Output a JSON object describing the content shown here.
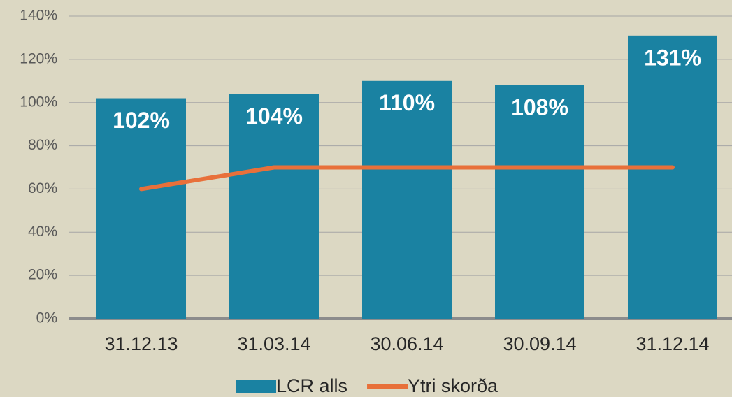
{
  "chart_data": {
    "type": "bar",
    "categories": [
      "31.12.13",
      "31.03.14",
      "30.06.14",
      "30.09.14",
      "31.12.14"
    ],
    "series": [
      {
        "name": "LCR alls",
        "type": "bar",
        "color": "#1a82a2",
        "values": [
          102,
          104,
          110,
          108,
          131
        ],
        "value_labels": [
          "102%",
          "104%",
          "110%",
          "108%",
          "131%"
        ]
      },
      {
        "name": "Ytri skorða",
        "type": "line",
        "color": "#e8703a",
        "values": [
          60,
          70,
          70,
          70,
          70
        ]
      }
    ],
    "ylim": [
      0,
      140
    ],
    "yticks": [
      {
        "value": 0,
        "label": "0%"
      },
      {
        "value": 20,
        "label": "20%"
      },
      {
        "value": 40,
        "label": "40%"
      },
      {
        "value": 60,
        "label": "60%"
      },
      {
        "value": 80,
        "label": "80%"
      },
      {
        "value": 100,
        "label": "100%"
      },
      {
        "value": 120,
        "label": "120%"
      },
      {
        "value": 140,
        "label": "140%"
      }
    ],
    "grid": true,
    "legend": "bottom"
  }
}
